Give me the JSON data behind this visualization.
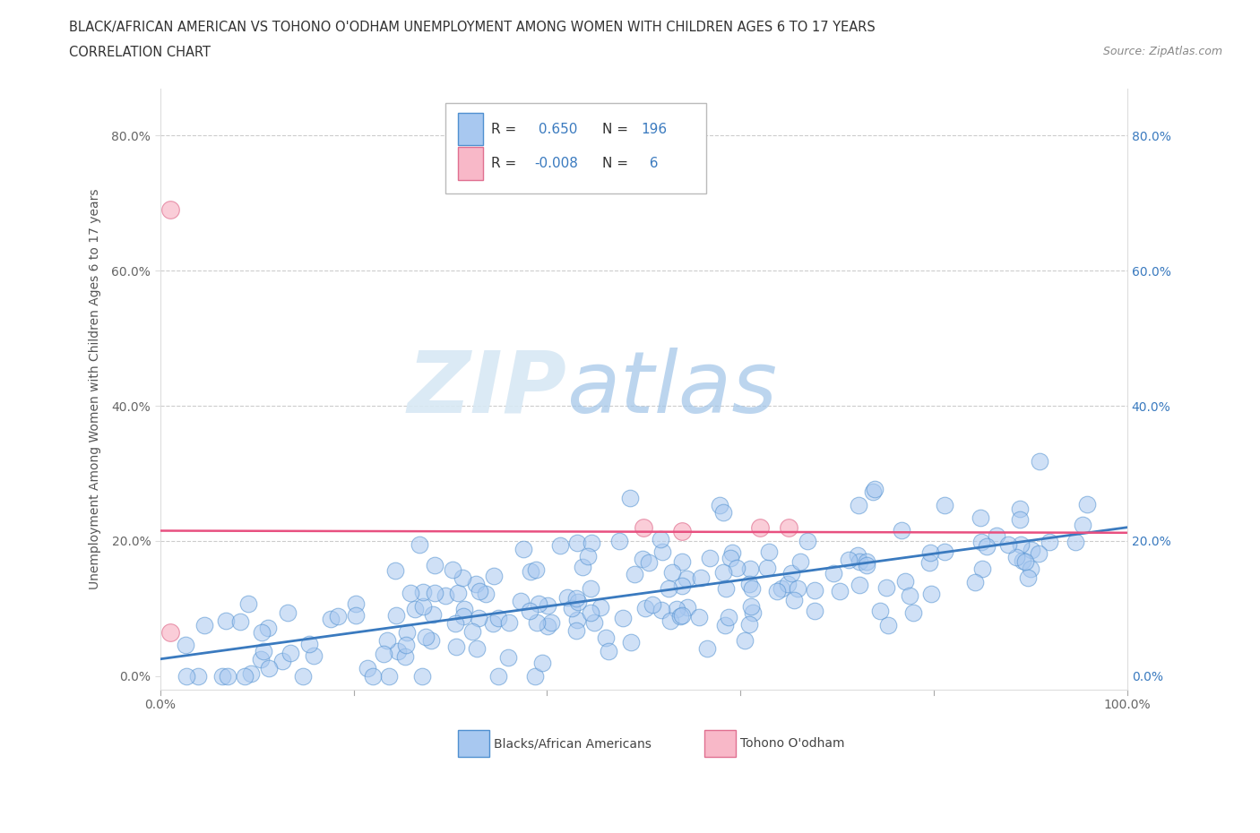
{
  "title_line1": "BLACK/AFRICAN AMERICAN VS TOHONO O'ODHAM UNEMPLOYMENT AMONG WOMEN WITH CHILDREN AGES 6 TO 17 YEARS",
  "title_line2": "CORRELATION CHART",
  "source": "Source: ZipAtlas.com",
  "ylabel": "Unemployment Among Women with Children Ages 6 to 17 years",
  "xlim": [
    0,
    1.0
  ],
  "ylim": [
    -0.02,
    0.87
  ],
  "yticks": [
    0.0,
    0.2,
    0.4,
    0.6,
    0.8
  ],
  "ytick_labels": [
    "0.0%",
    "20.0%",
    "40.0%",
    "60.0%",
    "80.0%"
  ],
  "xticks": [
    0.0,
    0.2,
    0.4,
    0.6,
    0.8,
    1.0
  ],
  "xtick_labels": [
    "0.0%",
    "",
    "",
    "",
    "",
    "100.0%"
  ],
  "blue_R": 0.65,
  "blue_N": 196,
  "pink_R": -0.008,
  "pink_N": 6,
  "blue_color": "#a8c8f0",
  "blue_edge_color": "#5090d0",
  "pink_color": "#f8b8c8",
  "pink_edge_color": "#e07090",
  "blue_line_color": "#3a7abf",
  "pink_line_color": "#e85080",
  "legend_label_blue": "Blacks/African Americans",
  "legend_label_pink": "Tohono O'odham",
  "watermark_zip": "ZIP",
  "watermark_atlas": "atlas",
  "blue_slope": 0.195,
  "blue_intercept": 0.025,
  "pink_slope": -0.003,
  "pink_intercept": 0.215,
  "pink_scatter_x": [
    0.01,
    0.01,
    0.5,
    0.54,
    0.62,
    0.65
  ],
  "pink_scatter_y": [
    0.69,
    0.065,
    0.22,
    0.215,
    0.22,
    0.22
  ]
}
